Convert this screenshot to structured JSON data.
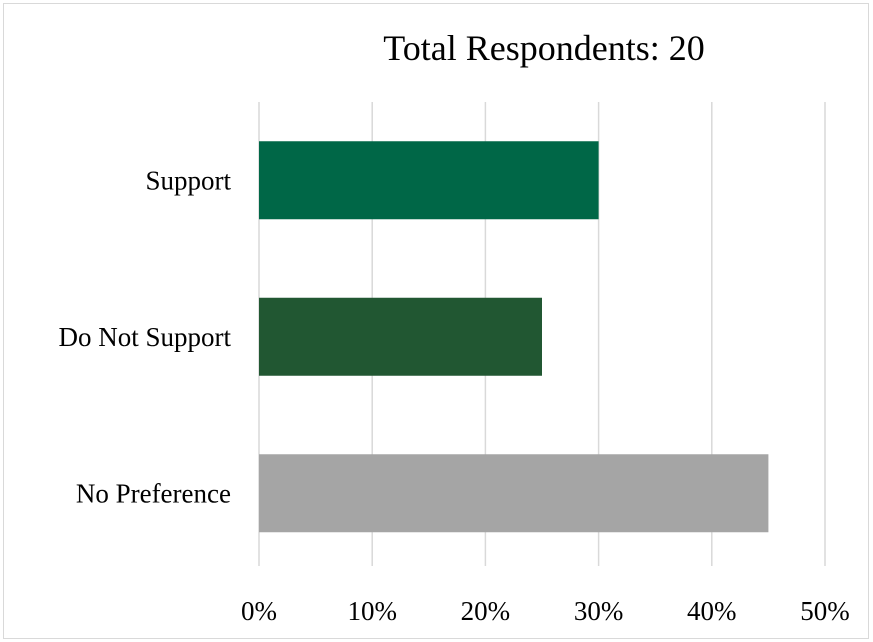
{
  "chart_data": {
    "type": "bar",
    "orientation": "horizontal",
    "title": "Total Respondents: 20",
    "categories": [
      "Support",
      "Do Not Support",
      "No Preference"
    ],
    "series": [
      {
        "values": [
          30,
          25,
          45
        ],
        "colors": [
          "#006747",
          "#215732",
          "#a5a5a5"
        ]
      }
    ],
    "xlabel": "",
    "ylabel": "",
    "xlim": [
      0,
      50
    ],
    "x_ticks": [
      0,
      10,
      20,
      30,
      40,
      50
    ],
    "x_tick_labels": [
      "0%",
      "10%",
      "20%",
      "30%",
      "40%",
      "50%"
    ],
    "grid": true,
    "legend": "none"
  }
}
